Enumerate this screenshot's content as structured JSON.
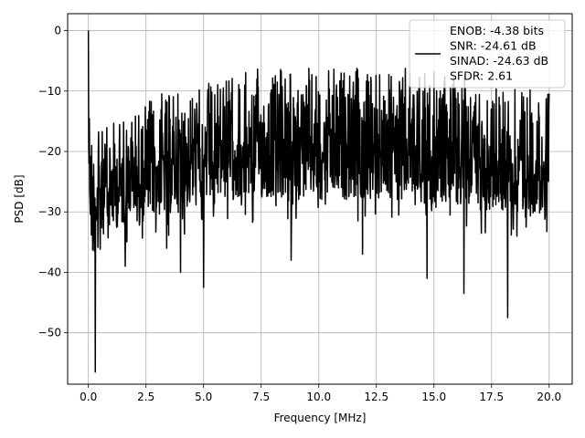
{
  "chart_data": {
    "type": "line",
    "xlabel": "Frequency [MHz]",
    "ylabel": "PSD [dB]",
    "xlim": [
      -0.9,
      21.0
    ],
    "ylim": [
      -58.5,
      2.8
    ],
    "grid": true,
    "legend_position": "top-right",
    "x_ticks": [
      0.0,
      2.5,
      5.0,
      7.5,
      10.0,
      12.5,
      15.0,
      17.5,
      20.0
    ],
    "x_tick_labels": [
      "0.0",
      "2.5",
      "5.0",
      "7.5",
      "10.0",
      "12.5",
      "15.0",
      "17.5",
      "20.0"
    ],
    "y_ticks": [
      0,
      -10,
      -20,
      -30,
      -40,
      -50
    ],
    "y_tick_labels": [
      "0",
      "−10",
      "−20",
      "−30",
      "−40",
      "−50"
    ],
    "legend_entries": [
      "ENOB: -4.38 bits",
      "SNR: -24.61 dB",
      "SINAD: -24.63 dB",
      "SFDR: 2.61"
    ],
    "series": [
      {
        "color": "#000000",
        "x": [
          0.0,
          0.05,
          0.1,
          0.2,
          0.3,
          0.5,
          1.0,
          2.0,
          3.0,
          4.0,
          5.0,
          6.0,
          7.0,
          8.0,
          9.0,
          10.0,
          11.0,
          12.0,
          13.0,
          14.0,
          15.0,
          16.0,
          17.0,
          18.0,
          19.0,
          20.0
        ],
        "upper": [
          0,
          -10,
          -13,
          -16,
          -17,
          -16,
          -15,
          -12,
          -10,
          -9,
          -8,
          -7,
          -6,
          -6,
          -6,
          -6,
          -6,
          -6,
          -6,
          -6,
          -6,
          -7,
          -7,
          -8,
          -9,
          -10
        ],
        "lower": [
          -23,
          -30,
          -35,
          -38,
          -36,
          -34,
          -33,
          -32,
          -31,
          -30,
          -29,
          -28,
          -28,
          -28,
          -28,
          -28,
          -28,
          -28,
          -28,
          -28,
          -29,
          -29,
          -30,
          -30,
          -30,
          -31
        ],
        "deep_dips": [
          {
            "x": 0.3,
            "y": -56.5
          },
          {
            "x": 4.0,
            "y": -40
          },
          {
            "x": 5.0,
            "y": -42.5
          },
          {
            "x": 1.6,
            "y": -39
          },
          {
            "x": 3.4,
            "y": -36
          },
          {
            "x": 8.8,
            "y": -38
          },
          {
            "x": 11.9,
            "y": -37
          },
          {
            "x": 14.7,
            "y": -41
          },
          {
            "x": 16.3,
            "y": -43.5
          },
          {
            "x": 18.2,
            "y": -47.5
          },
          {
            "x": 18.6,
            "y": -34
          }
        ]
      }
    ]
  }
}
